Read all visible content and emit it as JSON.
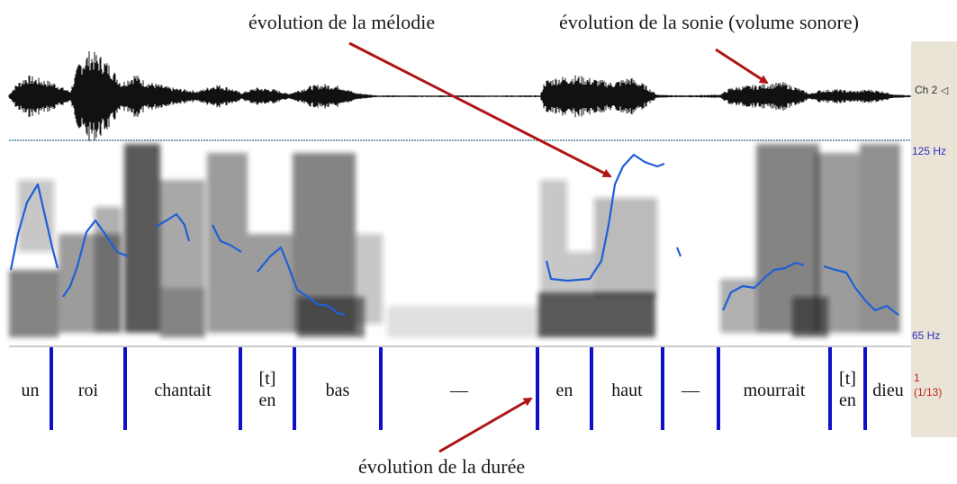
{
  "annotations": {
    "melody": "évolution de la mélodie",
    "loudness": "évolution de la sonie (volume sonore)",
    "duration": "évolution de la durée"
  },
  "channel_label": "Ch 2",
  "frequency_labels": {
    "top": "125 Hz",
    "bottom": "65 Hz"
  },
  "segment_counter": {
    "index": "1",
    "total": "(1/13)"
  },
  "segments": [
    {
      "text": "un"
    },
    {
      "text": "roi"
    },
    {
      "text": "chantait"
    },
    {
      "text": "[t]",
      "text2": "en"
    },
    {
      "text": "bas"
    },
    {
      "text": "—"
    },
    {
      "text": "en"
    },
    {
      "text": "haut"
    },
    {
      "text": "—"
    },
    {
      "text": "mourrait"
    },
    {
      "text": "[t]",
      "text2": "en"
    },
    {
      "text": "dieu"
    }
  ],
  "colors": {
    "pitch_line": "#1f5fd6",
    "arrow": "#b01515",
    "boundary": "#1010c8",
    "side_panel": "#e9e4d6",
    "axis_label": "#3030c0",
    "counter": "#c02020"
  }
}
